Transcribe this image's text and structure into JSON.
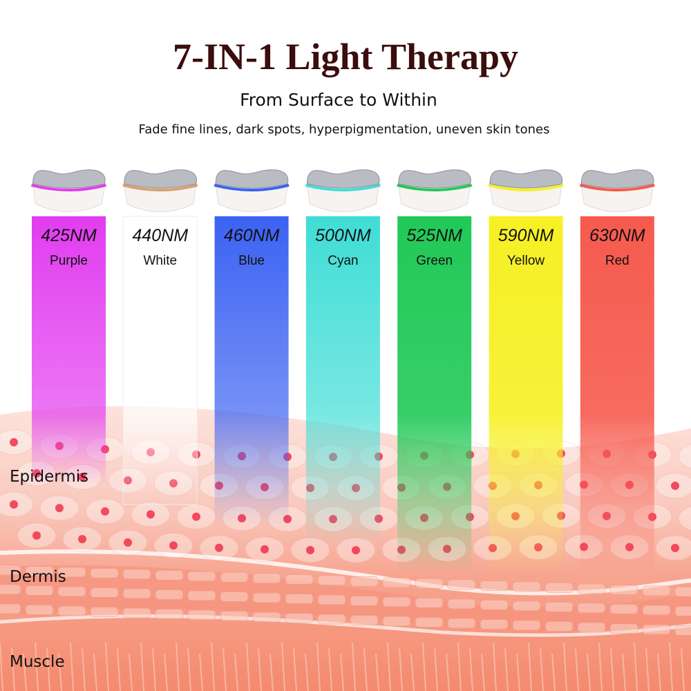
{
  "header": {
    "title": "7-IN-1 Light Therapy",
    "subtitle": "From Surface to Within",
    "tagline": "Fade fine lines, dark spots, hyperpigmentation, uneven skin tones"
  },
  "lights": [
    {
      "wavelength": "425NM",
      "name": "Purple",
      "color": "#e23cf0"
    },
    {
      "wavelength": "440NM",
      "name": "White",
      "color": "#ffffff"
    },
    {
      "wavelength": "460NM",
      "name": "Blue",
      "color": "#3b62f2"
    },
    {
      "wavelength": "500NM",
      "name": "Cyan",
      "color": "#3fddd6"
    },
    {
      "wavelength": "525NM",
      "name": "Green",
      "color": "#21c957"
    },
    {
      "wavelength": "590NM",
      "name": "Yellow",
      "color": "#f6f024"
    },
    {
      "wavelength": "630NM",
      "name": "Red",
      "color": "#f65a4e"
    }
  ],
  "layers": [
    "Epidermis",
    "Dermis",
    "Muscle"
  ]
}
